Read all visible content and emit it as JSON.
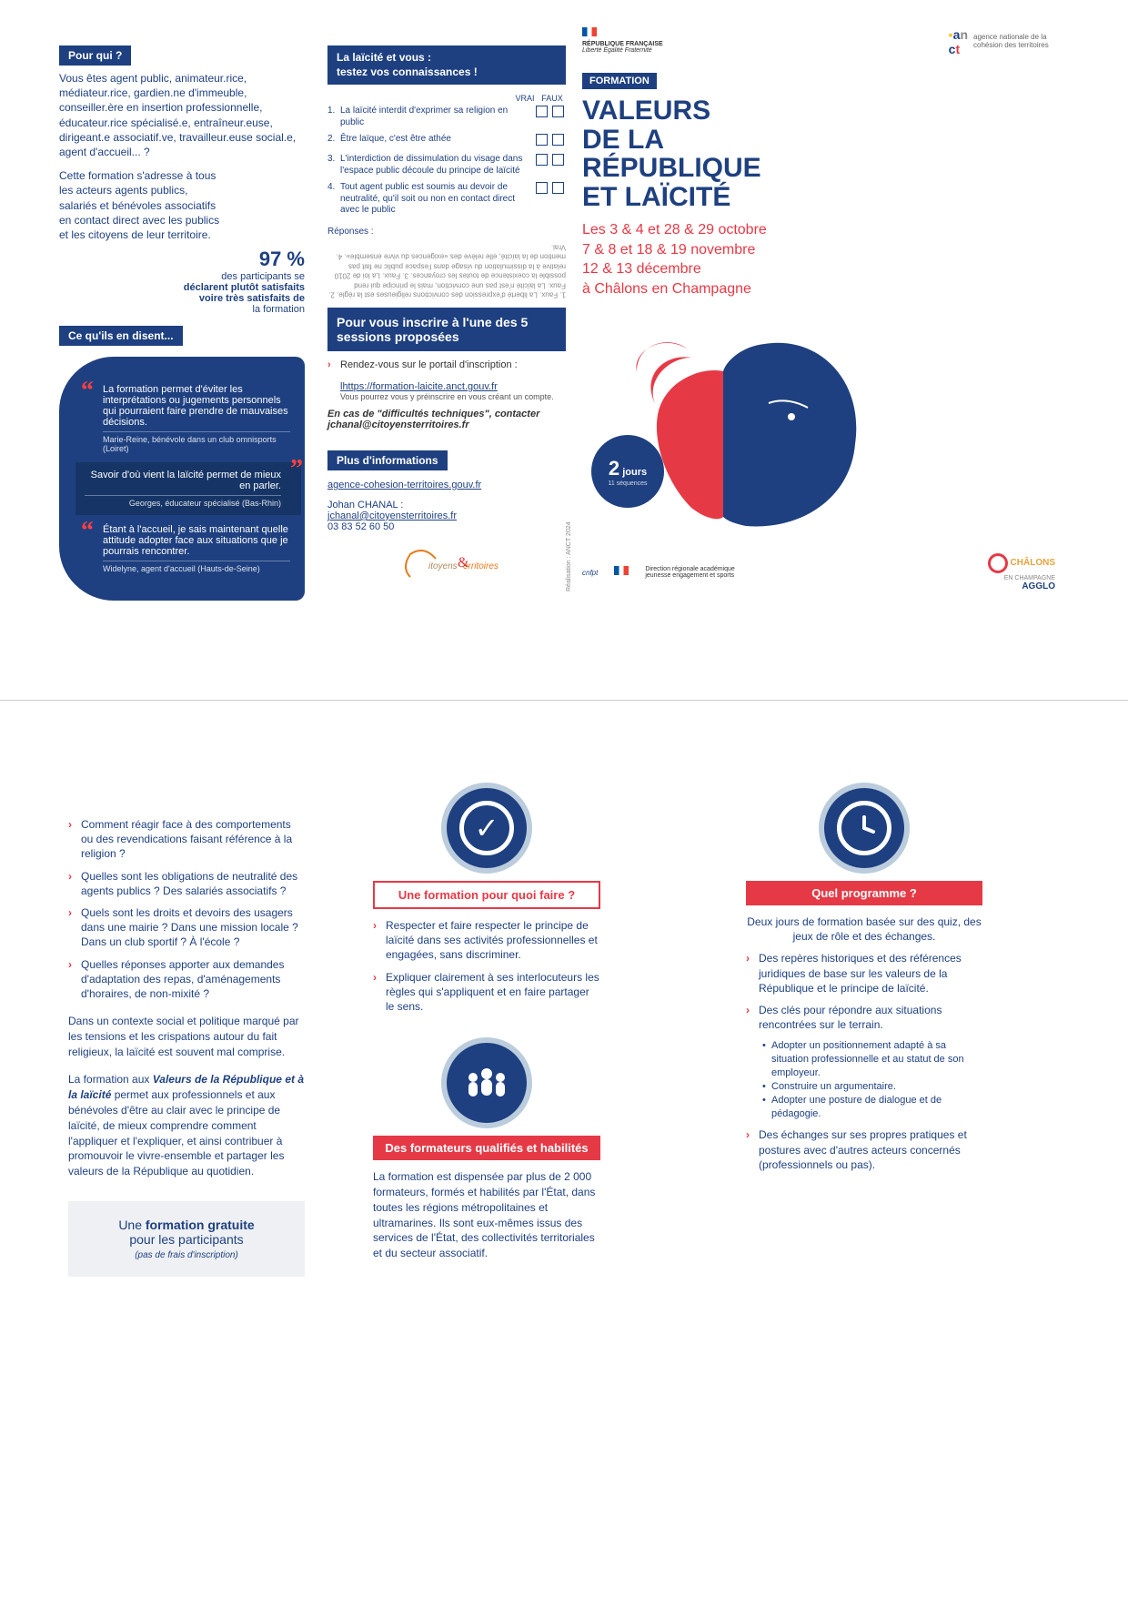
{
  "colors": {
    "navy": "#1e4080",
    "red": "#e63946",
    "grey_box": "#eef0f3",
    "text_grey": "#666666",
    "white": "#ffffff"
  },
  "top": {
    "pour_qui": {
      "tag": "Pour qui ?",
      "p1": "Vous êtes agent public, animateur.rice, médiateur.rice, gardien.ne d'immeuble, conseiller.ère en insertion professionnelle, éducateur.rice spécialisé.e, entraîneur.euse, dirigeant.e associatif.ve, travailleur.euse social.e, agent d'accueil... ?",
      "p2": "Cette formation s'adresse à tous les acteurs agents publics, salariés et bénévoles associatifs en contact direct avec les publics et les citoyens de leur territoire.",
      "stat_value": "97 %",
      "stat_line1": "des participants se",
      "stat_line2": "déclarent plutôt satisfaits",
      "stat_line3": "voire très satisfaits de",
      "stat_line4": "la formation"
    },
    "ce_quils_disent": {
      "tag": "Ce qu'ils en disent...",
      "q1": "La formation permet d'éviter les interprétations ou jugements personnels qui pourraient faire prendre de mauvaises décisions.",
      "a1": "Marie-Reine, bénévole dans un club omnisports (Loiret)",
      "q2": "Savoir d'où vient la laïcité permet de mieux en parler.",
      "a2": "Georges, éducateur spécialisé (Bas-Rhin)",
      "q3": "Étant à l'accueil, je sais maintenant quelle attitude adopter face aux situations que je pourrais rencontrer.",
      "a3": "Widelyne, agent d'accueil (Hauts-de-Seine)"
    },
    "quiz": {
      "tag1": "La laïcité et vous :",
      "tag2": "testez vos connaissances !",
      "col_vrai": "VRAI",
      "col_faux": "FAUX",
      "items": [
        {
          "n": "1.",
          "t": "La laïcité interdit d'exprimer sa religion en public"
        },
        {
          "n": "2.",
          "t": "Être laïque, c'est être athée"
        },
        {
          "n": "3.",
          "t": "L'interdiction de dissimulation du visage dans l'espace public découle du principe de laïcité"
        },
        {
          "n": "4.",
          "t": "Tout agent public est soumis au devoir de neutralité, qu'il soit ou non en contact direct avec le public"
        }
      ],
      "answers_label": "Réponses :",
      "answers_text": "1. Faux. La liberté d'expression des convictions religieuses est la règle. 2. Faux. La laïcité n'est pas une conviction, mais le principe qui rend possible la coexistence de toutes les croyances. 3. Faux. La loi de 2010 relative à la dissimulation du visage dans l'espace public ne fait pas mention de la laïcité, elle relève des «exigences du vivre ensemble». 4. Vrai."
    },
    "inscrire": {
      "head": "Pour vous inscrire à l'une des 5 sessions proposées",
      "l1": "Rendez-vous sur le portail d'inscription :",
      "url": "lhttps://formation-laicite.anct.gouv.fr",
      "l2": "Vous pourrez vous y préinscrire en vous créant un compte.",
      "l3": "En cas de \"difficultés techniques\", contacter jchanal@citoyensterritoires.fr"
    },
    "plus_info": {
      "tag": "Plus d'informations",
      "url": "agence-cohesion-territoires.gouv.fr",
      "name": "Johan CHANAL :",
      "email": "jchanal@citoyensterritoires.fr",
      "tel": "03 83 52 60 50",
      "orange_logo": "Citoyens & Territoires"
    },
    "right": {
      "rf": "RÉPUBLIQUE FRANÇAISE",
      "rf_sub": "Liberté Égalité Fraternité",
      "anct": "agence nationale de la cohésion des territoires",
      "formation_tag": "FORMATION",
      "title_l1": "VALEURS",
      "title_l2": "DE LA",
      "title_l3": "RÉPUBLIQUE",
      "title_l4": "ET LAÏCITÉ",
      "dates_l1": "Les 3 & 4 et 28 & 29 octobre",
      "dates_l2": "7 & 8 et 18 & 19 novembre",
      "dates_l3": "12 & 13 décembre",
      "dates_l4": "à Châlons en Champagne",
      "badge_num": "2",
      "badge_word": "jours",
      "badge_sub": "11 séquences",
      "agglo_l1": "CHÂLONS",
      "agglo_l2": "EN CHAMPAGNE",
      "agglo_l3": "AGGLO"
    },
    "credit": "Réalisation : ANCT 2024"
  },
  "bottom": {
    "left": {
      "bullets": [
        "Comment réagir face à des comportements ou des revendications faisant référence à la religion ?",
        "Quelles sont les obligations de neutralité des agents publics ? Des salariés associatifs ?",
        "Quels sont les droits et devoirs des usagers dans une mairie ? Dans une mission locale ? Dans un club sportif ? À l'école ?",
        "Quelles réponses apporter aux demandes d'adaptation des repas, d'aménagements d'horaires, de non-mixité ?"
      ],
      "context1": "Dans un contexte social et politique marqué par les tensions et les crispations autour du fait religieux, la laïcité est souvent mal comprise.",
      "context2_a": "La formation aux ",
      "context2_b": "Valeurs de la République et à la laïcité",
      "context2_c": " permet aux professionnels et aux bénévoles d'être au clair avec le principe de laïcité, de mieux comprendre comment l'appliquer et l'expliquer, et ainsi contribuer à promouvoir le vivre-ensemble et partager les valeurs de la République au quotidien.",
      "box_l1a": "Une ",
      "box_l1b": "formation gratuite",
      "box_l2": "pour les participants",
      "box_l3": "(pas de frais d'inscription)"
    },
    "mid": {
      "section1_label": "Une formation pour quoi faire ?",
      "s1_bullets": [
        "Respecter et faire respecter le principe de laïcité dans ses activités professionnelles et engagées, sans discriminer.",
        "Expliquer clairement à ses interlocuteurs les règles qui s'appliquent et en faire partager le sens."
      ],
      "section2_label": "Des formateurs qualifiés et habilités",
      "s2_text": "La formation est dispensée par plus de 2 000 formateurs, formés et habilités par l'État, dans toutes les régions métropolitaines et ultramarines. Ils sont eux-mêmes issus des services de l'État, des collectivités territoriales et du secteur associatif."
    },
    "right": {
      "section_label": "Quel programme ?",
      "intro": "Deux jours de formation basée sur des quiz, des jeux de rôle et des échanges.",
      "bullets": [
        "Des repères historiques et des références juridiques de base sur les valeurs de la République et le principe de laïcité.",
        "Des clés pour répondre aux situations rencontrées sur le terrain."
      ],
      "sub_bullets": [
        "Adopter un positionnement adapté à sa situation professionnelle et au statut de son employeur.",
        "Construire un argumentaire.",
        "Adopter une posture de dialogue et de pédagogie."
      ],
      "bullet3": "Des échanges sur ses propres pratiques et postures avec d'autres acteurs concernés (professionnels ou pas)."
    }
  }
}
